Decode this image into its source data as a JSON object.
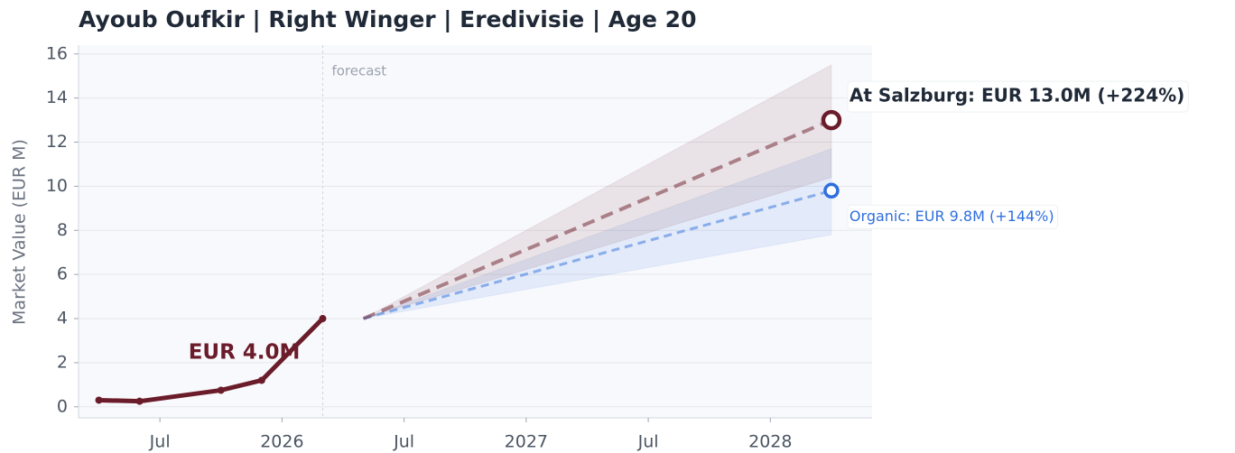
{
  "chart_data": {
    "type": "line",
    "title": "Ayoub Oufkir  |  Right Winger  |  Eredivisie  |  Age 20",
    "ylabel": "Market Value (EUR M)",
    "xlim": [
      "2025-03",
      "2028-06"
    ],
    "ylim": [
      -0.5,
      16.4
    ],
    "yticks": [
      0,
      2,
      4,
      6,
      8,
      10,
      12,
      14,
      16
    ],
    "xticks": [
      {
        "value": "2025-07",
        "label": "Jul"
      },
      {
        "value": "2026-01",
        "label": "2026"
      },
      {
        "value": "2026-07",
        "label": "Jul"
      },
      {
        "value": "2027-01",
        "label": "2027"
      },
      {
        "value": "2027-07",
        "label": "Jul"
      },
      {
        "value": "2028-01",
        "label": "2028"
      }
    ],
    "grid": true,
    "history": {
      "x": [
        "2025-04",
        "2025-06",
        "2025-10",
        "2025-12",
        "2026-03"
      ],
      "values": [
        0.3,
        0.25,
        0.75,
        1.2,
        4.0
      ],
      "color": "#6b1c2a",
      "label": "EUR 4.0M"
    },
    "forecast_marker": {
      "x": "2026-03",
      "label": "forecast"
    },
    "forecasts": [
      {
        "x": [
          "2026-05",
          "2028-04"
        ],
        "values": [
          4.0,
          9.8
        ],
        "upper": [
          4.0,
          11.7
        ],
        "lower": [
          4.0,
          7.8
        ],
        "color": "#2f6fde",
        "label": "Organic: EUR 9.8M (+144%)"
      },
      {
        "x": [
          "2026-05",
          "2028-04"
        ],
        "values": [
          4.0,
          13.0
        ],
        "upper": [
          4.0,
          15.5
        ],
        "lower": [
          4.0,
          10.4
        ],
        "color": "#6b1c2a",
        "label": "At Salzburg: EUR 13.0M (+224%)"
      }
    ]
  }
}
